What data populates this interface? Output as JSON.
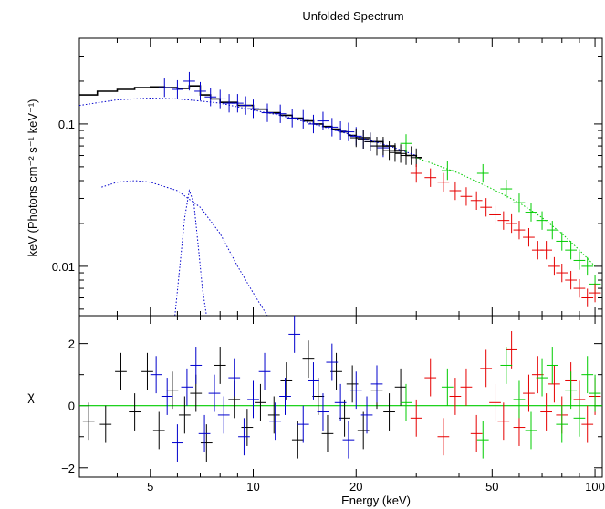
{
  "chart_data": {
    "type": "scatter",
    "title": "Unfolded Spectrum",
    "xlabel": "Energy (keV)",
    "x_scale": "log",
    "xlim": [
      3.1,
      105
    ],
    "x_ticks": [
      5,
      10,
      20,
      50,
      100
    ],
    "x_tick_labels": [
      "5",
      "10",
      "20",
      "50",
      "100"
    ],
    "colors": {
      "black": "#000000",
      "blue": "#0000cc",
      "red": "#e60000",
      "green": "#00cc00"
    },
    "panels": [
      {
        "name": "spectrum",
        "ylabel": "keV (Photons cm⁻² s⁻¹ keV⁻¹)",
        "y_scale": "log",
        "ylim": [
          0.0045,
          0.4
        ],
        "y_ticks": [
          0.1,
          0.01
        ],
        "y_tick_labels": [
          "0.1",
          "0.01"
        ],
        "series": [
          {
            "color": "black",
            "style": "step",
            "x": [
              3.1,
              3.5,
              4.0,
              4.5,
              5.0,
              5.5,
              6.0,
              6.5,
              7.0,
              7.5,
              8.0,
              9.0,
              10,
              11,
              12,
              13,
              14,
              15,
              16,
              17,
              18,
              19,
              20,
              22,
              24,
              26,
              28,
              30
            ],
            "y": [
              0.16,
              0.17,
              0.175,
              0.18,
              0.182,
              0.18,
              0.178,
              0.185,
              0.16,
              0.15,
              0.142,
              0.135,
              0.127,
              0.12,
              0.115,
              0.11,
              0.105,
              0.1,
              0.096,
              0.092,
              0.088,
              0.083,
              0.08,
              0.075,
              0.07,
              0.065,
              0.06,
              0.058
            ]
          },
          {
            "color": "blue",
            "style": "errors",
            "x": [
              5.5,
              6.0,
              6.5,
              7.0,
              7.5,
              8.0,
              8.5,
              9.0,
              9.5,
              10,
              11,
              12,
              13,
              14,
              15,
              16,
              17,
              18,
              19,
              20,
              21,
              22,
              23,
              24
            ],
            "y": [
              0.18,
              0.175,
              0.2,
              0.17,
              0.155,
              0.15,
              0.14,
              0.14,
              0.135,
              0.128,
              0.12,
              0.118,
              0.11,
              0.108,
              0.1,
              0.105,
              0.095,
              0.09,
              0.088,
              0.082,
              0.078,
              0.075,
              0.07,
              0.068
            ]
          },
          {
            "color": "black",
            "style": "errors",
            "x": [
              20,
              21,
              22,
              23,
              24,
              25,
              26,
              27,
              28,
              29,
              30
            ],
            "y": [
              0.08,
              0.078,
              0.075,
              0.07,
              0.07,
              0.065,
              0.063,
              0.062,
              0.06,
              0.06,
              0.058
            ]
          },
          {
            "color": "green",
            "style": "errors",
            "x": [
              28,
              37,
              47,
              55,
              60,
              65,
              70,
              75,
              80,
              85,
              90,
              95,
              100
            ],
            "y": [
              0.073,
              0.047,
              0.045,
              0.035,
              0.028,
              0.024,
              0.021,
              0.018,
              0.015,
              0.013,
              0.011,
              0.01,
              0.0075
            ]
          },
          {
            "color": "red",
            "style": "errors",
            "x": [
              30,
              33,
              36,
              39,
              42,
              45,
              48,
              51,
              54,
              57,
              60,
              64,
              68,
              72,
              76,
              80,
              85,
              90,
              95,
              100
            ],
            "y": [
              0.045,
              0.042,
              0.039,
              0.034,
              0.031,
              0.029,
              0.026,
              0.023,
              0.021,
              0.02,
              0.018,
              0.016,
              0.013,
              0.013,
              0.01,
              0.009,
              0.008,
              0.007,
              0.006,
              0.0065
            ]
          },
          {
            "color": "blue",
            "style": "dotted",
            "x": [
              3.1,
              4,
              5,
              6,
              7,
              8,
              10,
              12,
              15,
              20,
              25,
              30
            ],
            "y": [
              0.135,
              0.148,
              0.152,
              0.15,
              0.145,
              0.14,
              0.125,
              0.115,
              0.1,
              0.082,
              0.07,
              0.06
            ]
          },
          {
            "color": "green",
            "style": "dotted",
            "x": [
              30,
              40,
              50,
              60,
              70,
              80,
              90,
              100
            ],
            "y": [
              0.058,
              0.045,
              0.035,
              0.028,
              0.022,
              0.017,
              0.013,
              0.01
            ]
          },
          {
            "color": "blue",
            "style": "dotted",
            "x": [
              3.6,
              4,
              4.5,
              5,
              6,
              7,
              8,
              9,
              10,
              11
            ],
            "y": [
              0.036,
              0.039,
              0.04,
              0.039,
              0.034,
              0.026,
              0.017,
              0.01,
              0.0065,
              0.0045
            ]
          },
          {
            "color": "blue",
            "style": "dotted",
            "x": [
              5.9,
              6.1,
              6.3,
              6.5,
              6.7,
              6.9,
              7.1,
              7.3
            ],
            "y": [
              0.0045,
              0.01,
              0.022,
              0.034,
              0.028,
              0.014,
              0.007,
              0.0045
            ]
          }
        ]
      },
      {
        "name": "residuals",
        "ylabel": "χ",
        "y_scale": "linear",
        "ylim": [
          -2.3,
          2.9
        ],
        "y_ticks": [
          2,
          0,
          -2
        ],
        "y_tick_labels": [
          "2",
          "0",
          "−2"
        ],
        "zero_line_color": "green",
        "series": [
          {
            "color": "black",
            "style": "errors",
            "x": [
              3.3,
              3.7,
              4.1,
              4.5,
              4.9,
              5.3,
              5.8,
              6.3,
              6.8,
              7.3,
              8.0,
              8.8,
              9.6,
              10.5,
              11.5,
              12.5,
              13.5,
              14.5,
              15.5,
              16.5,
              17.5,
              18.5,
              19.5,
              21,
              23,
              25,
              27
            ],
            "y": [
              -0.5,
              -0.6,
              1.1,
              -0.2,
              1.1,
              -0.8,
              0.5,
              -0.3,
              0.4,
              -1.2,
              1.3,
              0.2,
              -0.7,
              0.1,
              -0.3,
              0.8,
              -1.1,
              1.5,
              0.3,
              -0.9,
              1.1,
              -0.4,
              0.7,
              -0.8,
              0.5,
              -0.2,
              0.6
            ]
          },
          {
            "color": "blue",
            "style": "errors",
            "x": [
              5.2,
              5.6,
              6.0,
              6.4,
              6.8,
              7.2,
              7.7,
              8.2,
              8.8,
              9.4,
              10,
              10.8,
              11.6,
              12.4,
              13.2,
              14,
              15,
              16,
              17,
              18,
              19,
              20,
              21.5,
              23
            ],
            "y": [
              1.0,
              0.3,
              -1.2,
              0.6,
              1.3,
              -0.9,
              0.4,
              -0.3,
              0.9,
              -1.0,
              0.2,
              1.1,
              -0.5,
              0.3,
              2.3,
              -0.6,
              0.8,
              -0.2,
              1.4,
              0.1,
              -1.1,
              0.5,
              -0.3,
              0.7
            ]
          },
          {
            "color": "red",
            "style": "errors",
            "x": [
              30,
              33,
              36,
              39,
              42,
              45,
              48,
              51,
              54,
              57,
              60,
              64,
              68,
              72,
              76,
              80,
              85,
              90,
              95,
              100
            ],
            "y": [
              -0.4,
              0.9,
              -1.0,
              0.3,
              0.6,
              -0.9,
              1.2,
              0.1,
              -0.5,
              1.8,
              -0.7,
              0.4,
              1.0,
              -0.2,
              0.7,
              -0.3,
              0.8,
              0.2,
              -0.6,
              0.3
            ]
          },
          {
            "color": "green",
            "style": "errors",
            "x": [
              28,
              37,
              47,
              55,
              60,
              65,
              70,
              75,
              80,
              85,
              90,
              95,
              100
            ],
            "y": [
              0.1,
              0.6,
              -1.1,
              1.3,
              0.2,
              -0.8,
              0.9,
              1.3,
              -0.6,
              0.5,
              -0.4,
              1.0,
              0.4
            ]
          }
        ]
      }
    ]
  }
}
